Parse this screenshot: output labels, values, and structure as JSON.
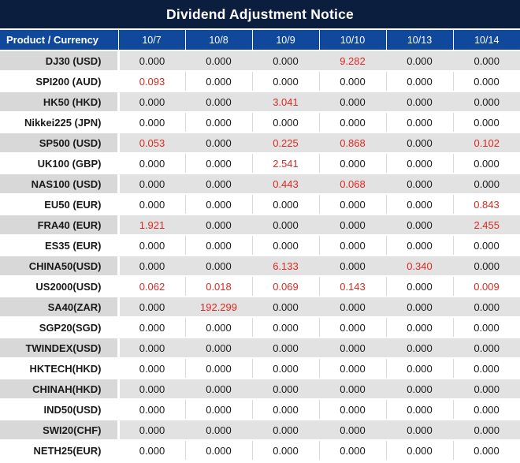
{
  "title": "Dividend Adjustment Notice",
  "colors": {
    "title_bg": "#0b1e3e",
    "header_bg": "#10499b",
    "row_gray_product": "#d8d8d8",
    "row_gray_value": "#e2e2e2",
    "red": "#dd2a22",
    "text": "#1a1a1a",
    "cell_line": "#d9d9d9"
  },
  "table": {
    "product_header": "Product / Currency",
    "date_headers": [
      "10/7",
      "10/8",
      "10/9",
      "10/10",
      "10/13",
      "10/14"
    ],
    "rows": [
      {
        "product": "DJ30 (USD)",
        "values": [
          "0.000",
          "0.000",
          "0.000",
          "9.282",
          "0.000",
          "0.000"
        ],
        "red": [
          false,
          false,
          false,
          true,
          false,
          false
        ]
      },
      {
        "product": "SPI200 (AUD)",
        "values": [
          "0.093",
          "0.000",
          "0.000",
          "0.000",
          "0.000",
          "0.000"
        ],
        "red": [
          true,
          false,
          false,
          false,
          false,
          false
        ]
      },
      {
        "product": "HK50 (HKD)",
        "values": [
          "0.000",
          "0.000",
          "3.041",
          "0.000",
          "0.000",
          "0.000"
        ],
        "red": [
          false,
          false,
          true,
          false,
          false,
          false
        ]
      },
      {
        "product": "Nikkei225 (JPN)",
        "values": [
          "0.000",
          "0.000",
          "0.000",
          "0.000",
          "0.000",
          "0.000"
        ],
        "red": [
          false,
          false,
          false,
          false,
          false,
          false
        ]
      },
      {
        "product": "SP500 (USD)",
        "values": [
          "0.053",
          "0.000",
          "0.225",
          "0.868",
          "0.000",
          "0.102"
        ],
        "red": [
          true,
          false,
          true,
          true,
          false,
          true
        ]
      },
      {
        "product": "UK100 (GBP)",
        "values": [
          "0.000",
          "0.000",
          "2.541",
          "0.000",
          "0.000",
          "0.000"
        ],
        "red": [
          false,
          false,
          true,
          false,
          false,
          false
        ]
      },
      {
        "product": "NAS100 (USD)",
        "values": [
          "0.000",
          "0.000",
          "0.443",
          "0.068",
          "0.000",
          "0.000"
        ],
        "red": [
          false,
          false,
          true,
          true,
          false,
          false
        ]
      },
      {
        "product": "EU50 (EUR)",
        "values": [
          "0.000",
          "0.000",
          "0.000",
          "0.000",
          "0.000",
          "0.843"
        ],
        "red": [
          false,
          false,
          false,
          false,
          false,
          true
        ]
      },
      {
        "product": "FRA40 (EUR)",
        "values": [
          "1.921",
          "0.000",
          "0.000",
          "0.000",
          "0.000",
          "2.455"
        ],
        "red": [
          true,
          false,
          false,
          false,
          false,
          true
        ]
      },
      {
        "product": "ES35 (EUR)",
        "values": [
          "0.000",
          "0.000",
          "0.000",
          "0.000",
          "0.000",
          "0.000"
        ],
        "red": [
          false,
          false,
          false,
          false,
          false,
          false
        ]
      },
      {
        "product": "CHINA50(USD)",
        "values": [
          "0.000",
          "0.000",
          "6.133",
          "0.000",
          "0.340",
          "0.000"
        ],
        "red": [
          false,
          false,
          true,
          false,
          true,
          false
        ]
      },
      {
        "product": "US2000(USD)",
        "values": [
          "0.062",
          "0.018",
          "0.069",
          "0.143",
          "0.000",
          "0.009"
        ],
        "red": [
          true,
          true,
          true,
          true,
          false,
          true
        ]
      },
      {
        "product": "SA40(ZAR)",
        "values": [
          "0.000",
          "192.299",
          "0.000",
          "0.000",
          "0.000",
          "0.000"
        ],
        "red": [
          false,
          true,
          false,
          false,
          false,
          false
        ]
      },
      {
        "product": "SGP20(SGD)",
        "values": [
          "0.000",
          "0.000",
          "0.000",
          "0.000",
          "0.000",
          "0.000"
        ],
        "red": [
          false,
          false,
          false,
          false,
          false,
          false
        ]
      },
      {
        "product": "TWINDEX(USD)",
        "values": [
          "0.000",
          "0.000",
          "0.000",
          "0.000",
          "0.000",
          "0.000"
        ],
        "red": [
          false,
          false,
          false,
          false,
          false,
          false
        ]
      },
      {
        "product": "HKTECH(HKD)",
        "values": [
          "0.000",
          "0.000",
          "0.000",
          "0.000",
          "0.000",
          "0.000"
        ],
        "red": [
          false,
          false,
          false,
          false,
          false,
          false
        ]
      },
      {
        "product": "CHINAH(HKD)",
        "values": [
          "0.000",
          "0.000",
          "0.000",
          "0.000",
          "0.000",
          "0.000"
        ],
        "red": [
          false,
          false,
          false,
          false,
          false,
          false
        ]
      },
      {
        "product": "IND50(USD)",
        "values": [
          "0.000",
          "0.000",
          "0.000",
          "0.000",
          "0.000",
          "0.000"
        ],
        "red": [
          false,
          false,
          false,
          false,
          false,
          false
        ]
      },
      {
        "product": "SWI20(CHF)",
        "values": [
          "0.000",
          "0.000",
          "0.000",
          "0.000",
          "0.000",
          "0.000"
        ],
        "red": [
          false,
          false,
          false,
          false,
          false,
          false
        ]
      },
      {
        "product": "NETH25(EUR)",
        "values": [
          "0.000",
          "0.000",
          "0.000",
          "0.000",
          "0.000",
          "0.000"
        ],
        "red": [
          false,
          false,
          false,
          false,
          false,
          false
        ]
      }
    ]
  }
}
